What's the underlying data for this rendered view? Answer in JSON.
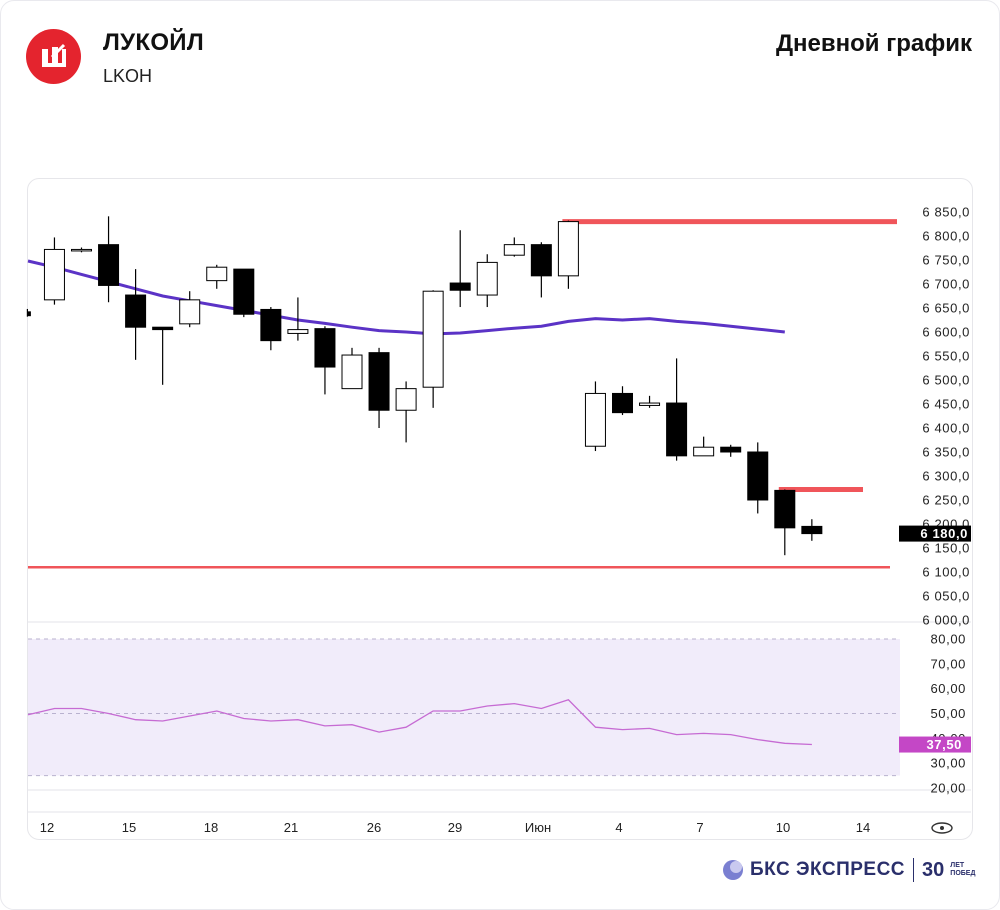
{
  "header": {
    "company": "ЛУКОЙЛ",
    "ticker": "LKOH",
    "chart_type_label": "Дневной график"
  },
  "colors": {
    "brand_red": "#e4242e",
    "level_red": "#f0555a",
    "ma_purple": "#5b33c6",
    "rsi_line": "#c66bd3",
    "rsi_band": "#f1ecfa",
    "rsi_badge": "#c447c6",
    "price_badge": "#000000"
  },
  "chart_data": [
    {
      "type": "candlestick",
      "x_tick_labels": [
        "12",
        "15",
        "18",
        "21",
        "26",
        "29",
        "Июн",
        "4",
        "7",
        "10",
        "14"
      ],
      "y_tick_labels": [
        "6 850,0",
        "6 800,0",
        "6 750,0",
        "6 700,0",
        "6 650,0",
        "6 600,0",
        "6 550,0",
        "6 500,0",
        "6 450,0",
        "6 400,0",
        "6 350,0",
        "6 300,0",
        "6 250,0",
        "6 200,0",
        "6 150,0",
        "6 100,0",
        "6 050,0",
        "6 000,0"
      ],
      "ylim": [
        6000,
        6850
      ],
      "last_price": 6180.0,
      "last_price_label": "6 180,0",
      "candles": [
        {
          "o": 6642,
          "h": 6648,
          "l": 6632,
          "c": 6634
        },
        {
          "o": 6667,
          "h": 6797,
          "l": 6657,
          "c": 6772
        },
        {
          "o": 6772,
          "h": 6776,
          "l": 6766,
          "c": 6772
        },
        {
          "o": 6782,
          "h": 6841,
          "l": 6662,
          "c": 6697
        },
        {
          "o": 6677,
          "h": 6731,
          "l": 6542,
          "c": 6610
        },
        {
          "o": 6610,
          "h": 6610,
          "l": 6490,
          "c": 6605
        },
        {
          "o": 6617,
          "h": 6685,
          "l": 6610,
          "c": 6667
        },
        {
          "o": 6707,
          "h": 6740,
          "l": 6690,
          "c": 6735
        },
        {
          "o": 6731,
          "h": 6731,
          "l": 6631,
          "c": 6637
        },
        {
          "o": 6647,
          "h": 6652,
          "l": 6562,
          "c": 6582
        },
        {
          "o": 6597,
          "h": 6672,
          "l": 6582,
          "c": 6605
        },
        {
          "o": 6607,
          "h": 6612,
          "l": 6470,
          "c": 6527
        },
        {
          "o": 6482,
          "h": 6567,
          "l": 6482,
          "c": 6552
        },
        {
          "o": 6557,
          "h": 6567,
          "l": 6400,
          "c": 6437
        },
        {
          "o": 6437,
          "h": 6497,
          "l": 6370,
          "c": 6482
        },
        {
          "o": 6485,
          "h": 6687,
          "l": 6442,
          "c": 6685
        },
        {
          "o": 6702,
          "h": 6812,
          "l": 6652,
          "c": 6687
        },
        {
          "o": 6677,
          "h": 6762,
          "l": 6652,
          "c": 6745
        },
        {
          "o": 6760,
          "h": 6797,
          "l": 6757,
          "c": 6782
        },
        {
          "o": 6782,
          "h": 6787,
          "l": 6672,
          "c": 6717
        },
        {
          "o": 6717,
          "h": 6832,
          "l": 6690,
          "c": 6830
        },
        {
          "o": 6362,
          "h": 6497,
          "l": 6352,
          "c": 6472
        },
        {
          "o": 6472,
          "h": 6487,
          "l": 6427,
          "c": 6432
        },
        {
          "o": 6447,
          "h": 6467,
          "l": 6442,
          "c": 6452
        },
        {
          "o": 6452,
          "h": 6545,
          "l": 6332,
          "c": 6342
        },
        {
          "o": 6342,
          "h": 6382,
          "l": 6342,
          "c": 6360
        },
        {
          "o": 6360,
          "h": 6365,
          "l": 6340,
          "c": 6350
        },
        {
          "o": 6350,
          "h": 6370,
          "l": 6222,
          "c": 6250
        },
        {
          "o": 6270,
          "h": 6272,
          "l": 6135,
          "c": 6192
        },
        {
          "o": 6195,
          "h": 6210,
          "l": 6165,
          "c": 6180
        }
      ],
      "moving_average": [
        6748,
        6735,
        6720,
        6705,
        6690,
        6675,
        6665,
        6655,
        6645,
        6635,
        6625,
        6618,
        6610,
        6603,
        6600,
        6596,
        6598,
        6603,
        6608,
        6612,
        6622,
        6628,
        6625,
        6628,
        6622,
        6618,
        6612,
        6606,
        6600
      ],
      "levels": [
        {
          "value": 6830,
          "from_candle": 20
        },
        {
          "value": 6272,
          "from_candle": 28
        },
        {
          "value": 6110,
          "from_candle": 0
        }
      ]
    },
    {
      "type": "line",
      "y_tick_labels": [
        "80,00",
        "70,00",
        "60,00",
        "50,00",
        "40,00",
        "30,00",
        "20,00"
      ],
      "ylim": [
        20,
        80
      ],
      "overbought": 80,
      "oversold": 25,
      "midline": 50,
      "last_value_label": "37,50",
      "values": [
        49.5,
        52,
        52,
        50,
        47.5,
        47,
        49,
        51,
        48,
        47,
        47.5,
        45,
        45.5,
        42.5,
        44.5,
        51,
        51,
        53,
        54,
        52,
        55.5,
        44.5,
        43.5,
        44,
        41.5,
        42,
        41.5,
        39.5,
        38,
        37.5
      ]
    }
  ],
  "footer": {
    "brand_name": "БКС ЭКСПРЕСС",
    "years": "30",
    "years_sub_1": "ЛЕТ",
    "years_sub_2": "ПОБЕД"
  }
}
